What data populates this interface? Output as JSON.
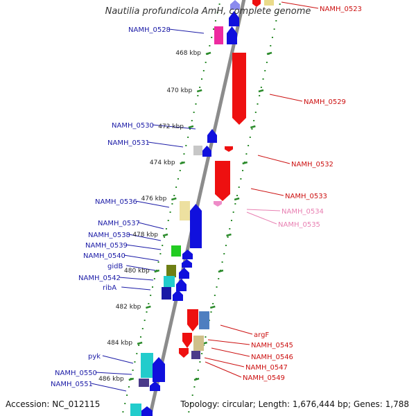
{
  "header": {
    "title": "Nautilia profundicola AmH, complete genome"
  },
  "footer": {
    "accession": "Accession: NC_012115",
    "topology": "Topology: circular; Length: 1,676,444 bp; Genes: 1,788"
  },
  "colors": {
    "backbone": "#8c8c8c",
    "tick": "#2a8a2a",
    "forward_label": "#1a1aa6",
    "reverse_label": "#cc1010",
    "faint_label": "#e87fb2",
    "forward_gene": "#1010dd",
    "reverse_gene": "#ee1010"
  },
  "scale": [
    {
      "label": "468 kbp"
    },
    {
      "label": "470 kbp"
    },
    {
      "label": "472 kbp"
    },
    {
      "label": "474 kbp"
    },
    {
      "label": "476 kbp"
    },
    {
      "label": "478 kbp"
    },
    {
      "label": "480 kbp"
    },
    {
      "label": "482 kbp"
    },
    {
      "label": "484 kbp"
    },
    {
      "label": "486 kbp"
    }
  ],
  "left_genes": [
    {
      "label": "NAMH_0528"
    },
    {
      "label": "NAMH_0530"
    },
    {
      "label": "NAMH_0531"
    },
    {
      "label": "NAMH_0536"
    },
    {
      "label": "NAMH_0537"
    },
    {
      "label": "NAMH_0538"
    },
    {
      "label": "NAMH_0539"
    },
    {
      "label": "NAMH_0540"
    },
    {
      "label": "gidB"
    },
    {
      "label": "NAMH_0542"
    },
    {
      "label": "ribA"
    },
    {
      "label": "pyk"
    },
    {
      "label": "NAMH_0550"
    },
    {
      "label": "NAMH_0551"
    }
  ],
  "right_genes": [
    {
      "label": "NAMH_0523"
    },
    {
      "label": "NAMH_0529"
    },
    {
      "label": "NAMH_0532"
    },
    {
      "label": "NAMH_0533"
    },
    {
      "label": "NAMH_0534"
    },
    {
      "label": "NAMH_0535"
    },
    {
      "label": "argF"
    },
    {
      "label": "NAMH_0545"
    },
    {
      "label": "NAMH_0546"
    },
    {
      "label": "NAMH_0547"
    },
    {
      "label": "NAMH_0549"
    }
  ]
}
